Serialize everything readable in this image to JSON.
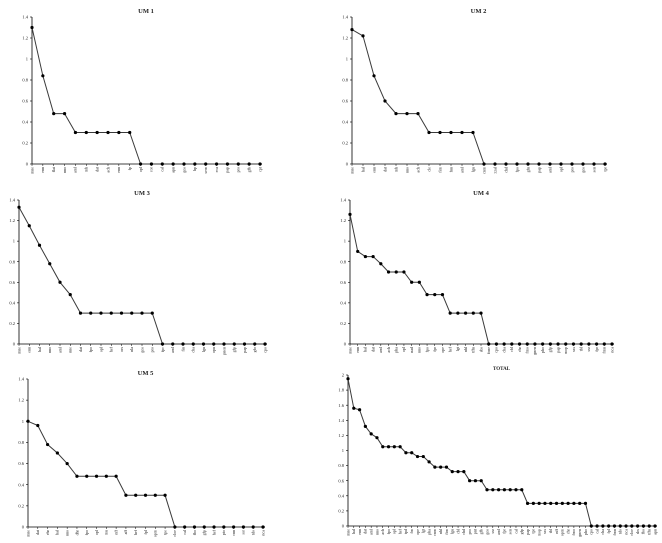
{
  "figure": {
    "style": {
      "line_color": "#3a3a3a",
      "axis_color": "#000000",
      "text_color": "#222222",
      "background": "#ffffff"
    }
  },
  "chart_data": [
    {
      "type": "line",
      "title": "UM 1",
      "ylim": [
        0,
        1.4
      ],
      "yticks": [
        "0",
        "0.2",
        "0.4",
        "0.6",
        "0.8",
        "1",
        "1.2",
        "1.4"
      ],
      "categories": [
        "mne",
        "enn",
        "flai",
        "nno",
        "aml",
        "mh",
        "dat",
        "ach",
        "enn",
        "fp",
        "opl",
        "cor",
        "cal",
        "apn",
        "gos",
        "hp",
        "sem",
        "eca",
        "pap",
        "pro",
        "gfb",
        "cpt"
      ],
      "values": [
        1.3,
        0.84,
        0.48,
        0.48,
        0.3,
        0.3,
        0.3,
        0.3,
        0.3,
        0.3,
        0,
        0,
        0,
        0,
        0,
        0,
        0,
        0,
        0,
        0,
        0,
        0
      ]
    },
    {
      "type": "line",
      "title": "UM 2",
      "ylim": [
        0,
        1.4
      ],
      "yticks": [
        "0",
        "0.2",
        "0.4",
        "0.6",
        "0.8",
        "1",
        "1.2",
        "1.4"
      ],
      "categories": [
        "mne",
        "hal",
        "enn",
        "dat",
        "mh",
        "nno",
        "ach",
        "cle",
        "fim",
        "fnn",
        "aml",
        "lgu",
        "cnm",
        "zzal",
        "chd",
        "fpo",
        "gfn",
        "pap",
        "aml",
        "opl",
        "pro",
        "gos",
        "sen",
        "tpr"
      ],
      "values": [
        1.28,
        1.22,
        0.84,
        0.6,
        0.48,
        0.48,
        0.48,
        0.3,
        0.3,
        0.3,
        0.3,
        0.3,
        0,
        0,
        0,
        0,
        0,
        0,
        0,
        0,
        0,
        0,
        0,
        0
      ]
    },
    {
      "type": "line",
      "title": "UM 3",
      "ylim": [
        0,
        1.4
      ],
      "yticks": [
        "0",
        "0.2",
        "0.4",
        "0.6",
        "0.8",
        "1",
        "1.2",
        "1.4"
      ],
      "categories": [
        "mne",
        "enn",
        "hal",
        "nno",
        "aml",
        "nne",
        "dat",
        "fpo",
        "opl",
        "hef",
        "ors",
        "nla",
        "gos",
        "pro",
        "fpc",
        "aml",
        "fin",
        "cha",
        "lgu",
        "opu",
        "pnen",
        "gfp",
        "pap",
        "gfo",
        "cpo"
      ],
      "values": [
        1.33,
        1.15,
        0.96,
        0.78,
        0.6,
        0.48,
        0.3,
        0.3,
        0.3,
        0.3,
        0.3,
        0.3,
        0.3,
        0.3,
        0,
        0,
        0,
        0,
        0,
        0,
        0,
        0,
        0,
        0,
        0
      ]
    },
    {
      "type": "line",
      "title": "UM 4",
      "ylim": [
        0,
        1.4
      ],
      "yticks": [
        "0",
        "0.2",
        "0.4",
        "0.6",
        "0.8",
        "1",
        "1.2",
        "1.4"
      ],
      "categories": [
        "mne",
        "enn",
        "hal",
        "dat",
        "aml",
        "ach",
        "pha",
        "opl",
        "nad",
        "nno",
        "fpo",
        "fpr",
        "ope",
        "hef",
        "lgt",
        "nhl",
        "tffn",
        "sbs",
        "fone",
        "cpo",
        "cha",
        "cbl",
        "chr",
        "fmo",
        "gnen",
        "pho",
        "gfp",
        "pap",
        "mop",
        "szs",
        "tbl",
        "ssr",
        "fpr",
        "fmn",
        "nca"
      ],
      "values": [
        1.26,
        0.9,
        0.85,
        0.85,
        0.78,
        0.7,
        0.7,
        0.7,
        0.6,
        0.6,
        0.48,
        0.48,
        0.48,
        0.3,
        0.3,
        0.3,
        0.3,
        0.3,
        0,
        0,
        0,
        0,
        0,
        0,
        0,
        0,
        0,
        0,
        0,
        0,
        0,
        0,
        0,
        0,
        0
      ]
    },
    {
      "type": "line",
      "title": "UM 5",
      "ylim": [
        0,
        1.4
      ],
      "yticks": [
        "0",
        "0.2",
        "0.4",
        "0.6",
        "0.8",
        "1",
        "1.2",
        "1.4"
      ],
      "categories": [
        "mne",
        "dat",
        "ehr",
        "hal",
        "nno",
        "dhr",
        "fpo",
        "opl",
        "mu",
        "nff",
        "aff",
        "hef",
        "fpl",
        "opm",
        "tpe",
        "cloe",
        "cal",
        "fbo",
        "gfp",
        "hef",
        "pto",
        "cnn",
        "ssr",
        "tdo",
        "nca"
      ],
      "values": [
        1.0,
        0.96,
        0.78,
        0.7,
        0.6,
        0.48,
        0.48,
        0.48,
        0.48,
        0.48,
        0.3,
        0.3,
        0.3,
        0.3,
        0.3,
        0,
        0,
        0,
        0,
        0,
        0,
        0,
        0,
        0,
        0
      ]
    },
    {
      "type": "line",
      "title": "TOTAL",
      "ylim": [
        0,
        2
      ],
      "yticks": [
        "0",
        "0.2",
        "0.4",
        "0.6",
        "0.8",
        "1",
        "1.2",
        "1.4",
        "1.6",
        "1.8",
        "2"
      ],
      "categories": [
        "mne",
        "hal",
        "enn",
        "dat",
        "aml",
        "nno",
        "ach",
        "fpo",
        "opl",
        "hef",
        "tpd",
        "fm",
        "ope",
        "lgt",
        "pha",
        "cnm",
        "nhl",
        "fim",
        "lgu",
        "cbl",
        "chd",
        "pro",
        "pnt",
        "gfb",
        "gos",
        "ssr",
        "aml",
        "fpr",
        "sen",
        "cal",
        "gfp",
        "pap",
        "tpr",
        "mop",
        "szs",
        "tbl",
        "nff",
        "opm",
        "chr",
        "fmo",
        "gnen",
        "pho",
        "cpo",
        "cal",
        "cha",
        "fpl",
        "fmn",
        "tdo",
        "nca",
        "cloe",
        "sbs",
        "fbo",
        "tffn",
        "apn"
      ],
      "values": [
        1.95,
        1.56,
        1.54,
        1.32,
        1.22,
        1.17,
        1.05,
        1.05,
        1.05,
        1.05,
        0.97,
        0.97,
        0.92,
        0.92,
        0.85,
        0.78,
        0.78,
        0.78,
        0.72,
        0.72,
        0.72,
        0.6,
        0.6,
        0.6,
        0.48,
        0.48,
        0.48,
        0.48,
        0.48,
        0.48,
        0.48,
        0.3,
        0.3,
        0.3,
        0.3,
        0.3,
        0.3,
        0.3,
        0.3,
        0.3,
        0.3,
        0.3,
        0,
        0,
        0,
        0,
        0,
        0,
        0,
        0,
        0,
        0,
        0,
        0
      ]
    }
  ]
}
